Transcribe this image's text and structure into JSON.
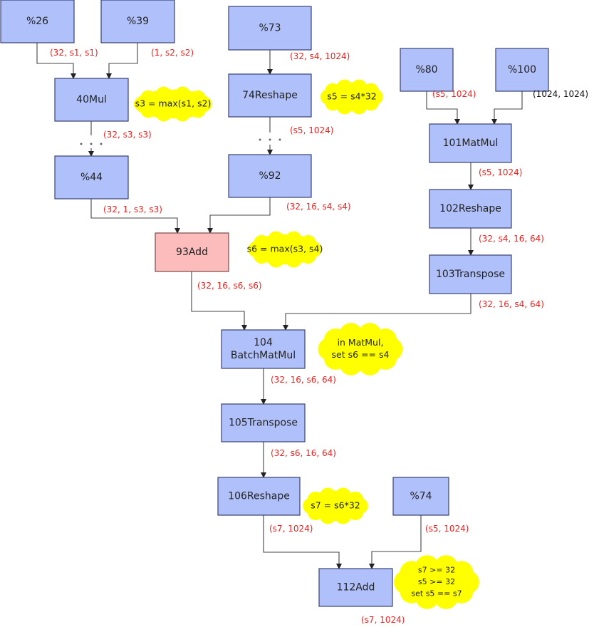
{
  "colors": {
    "node_fill": "#b0c0fb",
    "highlight_fill": "#fcbcbc",
    "annotation_fill": "#ffff00",
    "shape_text": "#f02020"
  },
  "nodes": [
    {
      "id": "n26",
      "label": [
        "%26"
      ]
    },
    {
      "id": "n39",
      "label": [
        "%39"
      ]
    },
    {
      "id": "n73",
      "label": [
        "%73"
      ]
    },
    {
      "id": "n40",
      "label": [
        "40Mul"
      ]
    },
    {
      "id": "n74r",
      "label": [
        "74Reshape"
      ]
    },
    {
      "id": "n80",
      "label": [
        "%80"
      ]
    },
    {
      "id": "n100",
      "label": [
        "%100"
      ]
    },
    {
      "id": "n101",
      "label": [
        "101MatMul"
      ]
    },
    {
      "id": "n44",
      "label": [
        "%44"
      ]
    },
    {
      "id": "n92",
      "label": [
        "%92"
      ]
    },
    {
      "id": "n93",
      "label": [
        "93Add"
      ],
      "highlight": true
    },
    {
      "id": "n102",
      "label": [
        "102Reshape"
      ]
    },
    {
      "id": "n103",
      "label": [
        "103Transpose"
      ]
    },
    {
      "id": "n104",
      "label": [
        "104",
        "BatchMatMul"
      ]
    },
    {
      "id": "n105",
      "label": [
        "105Transpose"
      ]
    },
    {
      "id": "n106",
      "label": [
        "106Reshape"
      ]
    },
    {
      "id": "n74",
      "label": [
        "%74"
      ]
    },
    {
      "id": "n112",
      "label": [
        "112Add"
      ]
    }
  ],
  "edge_labels": [
    "(32, s1, s1)",
    "(1, s2, s2)",
    "(32, s4, 1024)",
    "(s5, 1024)",
    "(1024, 1024)",
    "(32, s3, s3)",
    "(s5, 1024)",
    "(s5, 1024)",
    "(32, 1, s3, s3)",
    "(32, 16, s4, s4)",
    "(32, s4, 16, 64)",
    "(32, 16, s6, s6)",
    "(32, 16, s4, 64)",
    "(32, 16, s6, 64)",
    "(32, s6, 16, 64)",
    "(s7, 1024)",
    "(s5, 1024)",
    "(s7, 1024)"
  ],
  "annotations": [
    {
      "lines": [
        "s3 = max(s1, s2)"
      ]
    },
    {
      "lines": [
        "s5 = s4*32"
      ]
    },
    {
      "lines": [
        "s6 = max(s3, s4)"
      ]
    },
    {
      "lines": [
        "in MatMul,",
        "set s6 == s4"
      ]
    },
    {
      "lines": [
        "s7 = s6*32"
      ]
    },
    {
      "lines": [
        "s7 >= 32",
        "s5 >= 32",
        "set s5 == s7"
      ]
    }
  ]
}
